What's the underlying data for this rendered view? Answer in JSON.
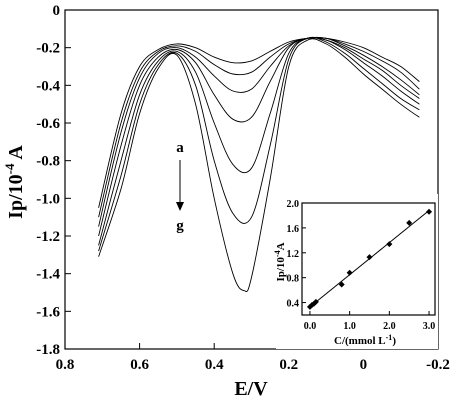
{
  "chart_data": [
    {
      "type": "line",
      "xlabel": "E/V",
      "ylabel": "Ip/10",
      "ylabel_exponent": "-4",
      "ylabel_unit": " A",
      "xlim": [
        0.8,
        -0.2
      ],
      "ylim": [
        -1.8,
        0
      ],
      "x_ticks": [
        "0.8",
        "0.6",
        "0.4",
        "0.2",
        "0",
        "-0.2"
      ],
      "x_tick_values": [
        0.8,
        0.6,
        0.4,
        0.2,
        0,
        -0.2
      ],
      "y_ticks": [
        "0",
        "-0.2",
        "-0.4",
        "-0.6",
        "-0.8",
        "-1.0",
        "-1.2",
        "-1.4",
        "-1.6",
        "-1.8"
      ],
      "y_tick_values": [
        0,
        -0.2,
        -0.4,
        -0.6,
        -0.8,
        -1.0,
        -1.2,
        -1.4,
        -1.6,
        -1.8
      ],
      "annotation_start": "a",
      "annotation_end": "g",
      "series": [
        {
          "values": [
            [
              0.71,
              -1.05
            ],
            [
              0.65,
              -0.55
            ],
            [
              0.6,
              -0.3
            ],
            [
              0.55,
              -0.21
            ],
            [
              0.5,
              -0.18
            ],
            [
              0.45,
              -0.2
            ],
            [
              0.4,
              -0.25
            ],
            [
              0.35,
              -0.28
            ],
            [
              0.3,
              -0.27
            ],
            [
              0.25,
              -0.22
            ],
            [
              0.2,
              -0.17
            ],
            [
              0.15,
              -0.15
            ],
            [
              0.1,
              -0.15
            ],
            [
              0.05,
              -0.17
            ],
            [
              0.0,
              -0.2
            ],
            [
              -0.05,
              -0.25
            ],
            [
              -0.1,
              -0.3
            ],
            [
              -0.15,
              -0.38
            ]
          ]
        },
        {
          "values": [
            [
              0.71,
              -1.1
            ],
            [
              0.65,
              -0.6
            ],
            [
              0.6,
              -0.33
            ],
            [
              0.55,
              -0.22
            ],
            [
              0.5,
              -0.19
            ],
            [
              0.45,
              -0.22
            ],
            [
              0.4,
              -0.29
            ],
            [
              0.35,
              -0.34
            ],
            [
              0.3,
              -0.33
            ],
            [
              0.25,
              -0.25
            ],
            [
              0.2,
              -0.18
            ],
            [
              0.15,
              -0.15
            ],
            [
              0.1,
              -0.15
            ],
            [
              0.05,
              -0.18
            ],
            [
              0.0,
              -0.22
            ],
            [
              -0.05,
              -0.27
            ],
            [
              -0.1,
              -0.33
            ],
            [
              -0.15,
              -0.42
            ]
          ]
        },
        {
          "values": [
            [
              0.71,
              -1.15
            ],
            [
              0.65,
              -0.65
            ],
            [
              0.6,
              -0.36
            ],
            [
              0.55,
              -0.23
            ],
            [
              0.5,
              -0.2
            ],
            [
              0.45,
              -0.25
            ],
            [
              0.4,
              -0.35
            ],
            [
              0.35,
              -0.43
            ],
            [
              0.3,
              -0.42
            ],
            [
              0.25,
              -0.3
            ],
            [
              0.2,
              -0.19
            ],
            [
              0.15,
              -0.15
            ],
            [
              0.1,
              -0.15
            ],
            [
              0.05,
              -0.19
            ],
            [
              0.0,
              -0.24
            ],
            [
              -0.05,
              -0.3
            ],
            [
              -0.1,
              -0.37
            ],
            [
              -0.15,
              -0.45
            ]
          ]
        },
        {
          "values": [
            [
              0.71,
              -1.2
            ],
            [
              0.65,
              -0.72
            ],
            [
              0.6,
              -0.4
            ],
            [
              0.55,
              -0.25
            ],
            [
              0.5,
              -0.21
            ],
            [
              0.45,
              -0.28
            ],
            [
              0.4,
              -0.45
            ],
            [
              0.35,
              -0.58
            ],
            [
              0.3,
              -0.57
            ],
            [
              0.25,
              -0.38
            ],
            [
              0.2,
              -0.2
            ],
            [
              0.15,
              -0.15
            ],
            [
              0.1,
              -0.16
            ],
            [
              0.05,
              -0.2
            ],
            [
              0.0,
              -0.26
            ],
            [
              -0.05,
              -0.32
            ],
            [
              -0.1,
              -0.4
            ],
            [
              -0.15,
              -0.47
            ]
          ]
        },
        {
          "values": [
            [
              0.71,
              -1.25
            ],
            [
              0.65,
              -0.8
            ],
            [
              0.6,
              -0.45
            ],
            [
              0.55,
              -0.27
            ],
            [
              0.5,
              -0.22
            ],
            [
              0.45,
              -0.33
            ],
            [
              0.4,
              -0.6
            ],
            [
              0.35,
              -0.82
            ],
            [
              0.3,
              -0.84
            ],
            [
              0.25,
              -0.55
            ],
            [
              0.2,
              -0.23
            ],
            [
              0.15,
              -0.15
            ],
            [
              0.1,
              -0.16
            ],
            [
              0.05,
              -0.21
            ],
            [
              0.0,
              -0.28
            ],
            [
              -0.05,
              -0.35
            ],
            [
              -0.1,
              -0.43
            ],
            [
              -0.15,
              -0.5
            ]
          ]
        },
        {
          "values": [
            [
              0.71,
              -1.28
            ],
            [
              0.65,
              -0.88
            ],
            [
              0.6,
              -0.5
            ],
            [
              0.55,
              -0.29
            ],
            [
              0.5,
              -0.23
            ],
            [
              0.45,
              -0.4
            ],
            [
              0.4,
              -0.8
            ],
            [
              0.35,
              -1.08
            ],
            [
              0.3,
              -1.1
            ],
            [
              0.25,
              -0.72
            ],
            [
              0.2,
              -0.26
            ],
            [
              0.15,
              -0.15
            ],
            [
              0.1,
              -0.17
            ],
            [
              0.05,
              -0.23
            ],
            [
              0.0,
              -0.31
            ],
            [
              -0.05,
              -0.39
            ],
            [
              -0.1,
              -0.47
            ],
            [
              -0.15,
              -0.53
            ]
          ]
        },
        {
          "values": [
            [
              0.71,
              -1.31
            ],
            [
              0.65,
              -0.95
            ],
            [
              0.6,
              -0.55
            ],
            [
              0.55,
              -0.31
            ],
            [
              0.5,
              -0.24
            ],
            [
              0.45,
              -0.5
            ],
            [
              0.4,
              -1.0
            ],
            [
              0.35,
              -1.4
            ],
            [
              0.32,
              -1.49
            ],
            [
              0.3,
              -1.42
            ],
            [
              0.25,
              -0.9
            ],
            [
              0.2,
              -0.3
            ],
            [
              0.15,
              -0.16
            ],
            [
              0.1,
              -0.18
            ],
            [
              0.05,
              -0.25
            ],
            [
              0.0,
              -0.34
            ],
            [
              -0.05,
              -0.42
            ],
            [
              -0.1,
              -0.5
            ],
            [
              -0.15,
              -0.57
            ]
          ]
        }
      ]
    },
    {
      "type": "scatter",
      "xlabel": "C/(mmol L",
      "xlabel_exponent": "-1",
      "xlabel_close": ")",
      "ylabel": "Ip/10",
      "ylabel_exponent": "-4",
      "ylabel_unit": "A",
      "xlim": [
        -0.2,
        3.15
      ],
      "ylim": [
        0.2,
        2.0
      ],
      "x_ticks": [
        "0.0",
        "1.0",
        "2.0",
        "3.0"
      ],
      "x_tick_values": [
        0.0,
        1.0,
        2.0,
        3.0
      ],
      "y_ticks": [
        "0.4",
        "0.8",
        "1.2",
        "1.6",
        "2.0"
      ],
      "y_tick_values": [
        0.4,
        0.8,
        1.2,
        1.6,
        2.0
      ],
      "x": [
        0.0,
        0.05,
        0.1,
        0.15,
        0.8,
        1.0,
        1.5,
        2.0,
        2.5,
        3.0
      ],
      "y": [
        0.33,
        0.36,
        0.38,
        0.41,
        0.69,
        0.88,
        1.13,
        1.34,
        1.68,
        1.86
      ],
      "fit_line": {
        "x": [
          0.0,
          3.0
        ],
        "y": [
          0.33,
          1.88
        ]
      }
    }
  ]
}
